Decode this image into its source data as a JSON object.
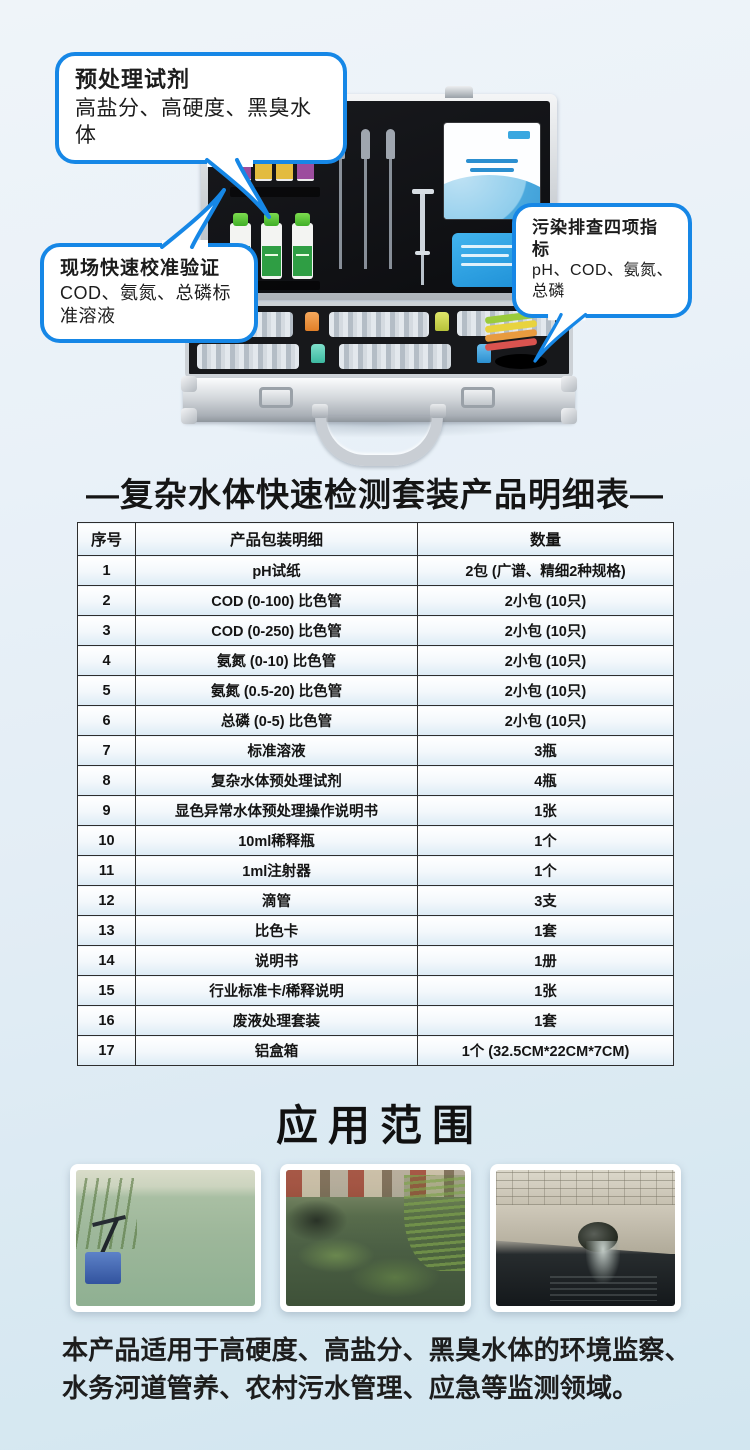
{
  "colors": {
    "accent_blue": "#1687e6",
    "table_border": "#2e2e2e",
    "page_bg_top": "#eff4f9",
    "page_bg_bottom": "#d2e6f0"
  },
  "callouts": [
    {
      "title": "预处理试剂",
      "subtitle": "高盐分、高硬度、黑臭水体"
    },
    {
      "title": "现场快速校准验证",
      "subtitle": "COD、氨氮、总磷标准溶液"
    },
    {
      "title": "污染排查四项指标",
      "subtitle": "pH、COD、氨氮、总磷"
    }
  ],
  "table_title": "—复杂水体快速检测套装产品明细表—",
  "table": {
    "headers": [
      "序号",
      "产品包装明细",
      "数量"
    ],
    "rows": [
      [
        "1",
        "pH试纸",
        "2包 (广谱、精细2种规格)"
      ],
      [
        "2",
        "COD (0-100) 比色管",
        "2小包 (10只)"
      ],
      [
        "3",
        "COD (0-250) 比色管",
        "2小包 (10只)"
      ],
      [
        "4",
        "氨氮 (0-10) 比色管",
        "2小包 (10只)"
      ],
      [
        "5",
        "氨氮 (0.5-20) 比色管",
        "2小包 (10只)"
      ],
      [
        "6",
        "总磷 (0-5) 比色管",
        "2小包 (10只)"
      ],
      [
        "7",
        "标准溶液",
        "3瓶"
      ],
      [
        "8",
        "复杂水体预处理试剂",
        "4瓶"
      ],
      [
        "9",
        "显色异常水体预处理操作说明书",
        "1张"
      ],
      [
        "10",
        "10ml稀释瓶",
        "1个"
      ],
      [
        "11",
        "1ml注射器",
        "1个"
      ],
      [
        "12",
        "滴管",
        "3支"
      ],
      [
        "13",
        "比色卡",
        "1套"
      ],
      [
        "14",
        "说明书",
        "1册"
      ],
      [
        "15",
        "行业标准卡/稀释说明",
        "1张"
      ],
      [
        "16",
        "废液处理套装",
        "1套"
      ],
      [
        "17",
        "铝盒箱",
        "1个 (32.5CM*22CM*7CM)"
      ]
    ]
  },
  "section_title": "应用范围",
  "photos": [
    {
      "name": "lake-monitoring-photo",
      "alt": "湖泊水体监测"
    },
    {
      "name": "polluted-canal-photo",
      "alt": "黑臭河道"
    },
    {
      "name": "sewage-outfall-photo",
      "alt": "污水排放口"
    }
  ],
  "footer_text": "本产品适用于高硬度、高盐分、黑臭水体的环境监察、水务河道管养、农村污水管理、应急等监测领域。"
}
